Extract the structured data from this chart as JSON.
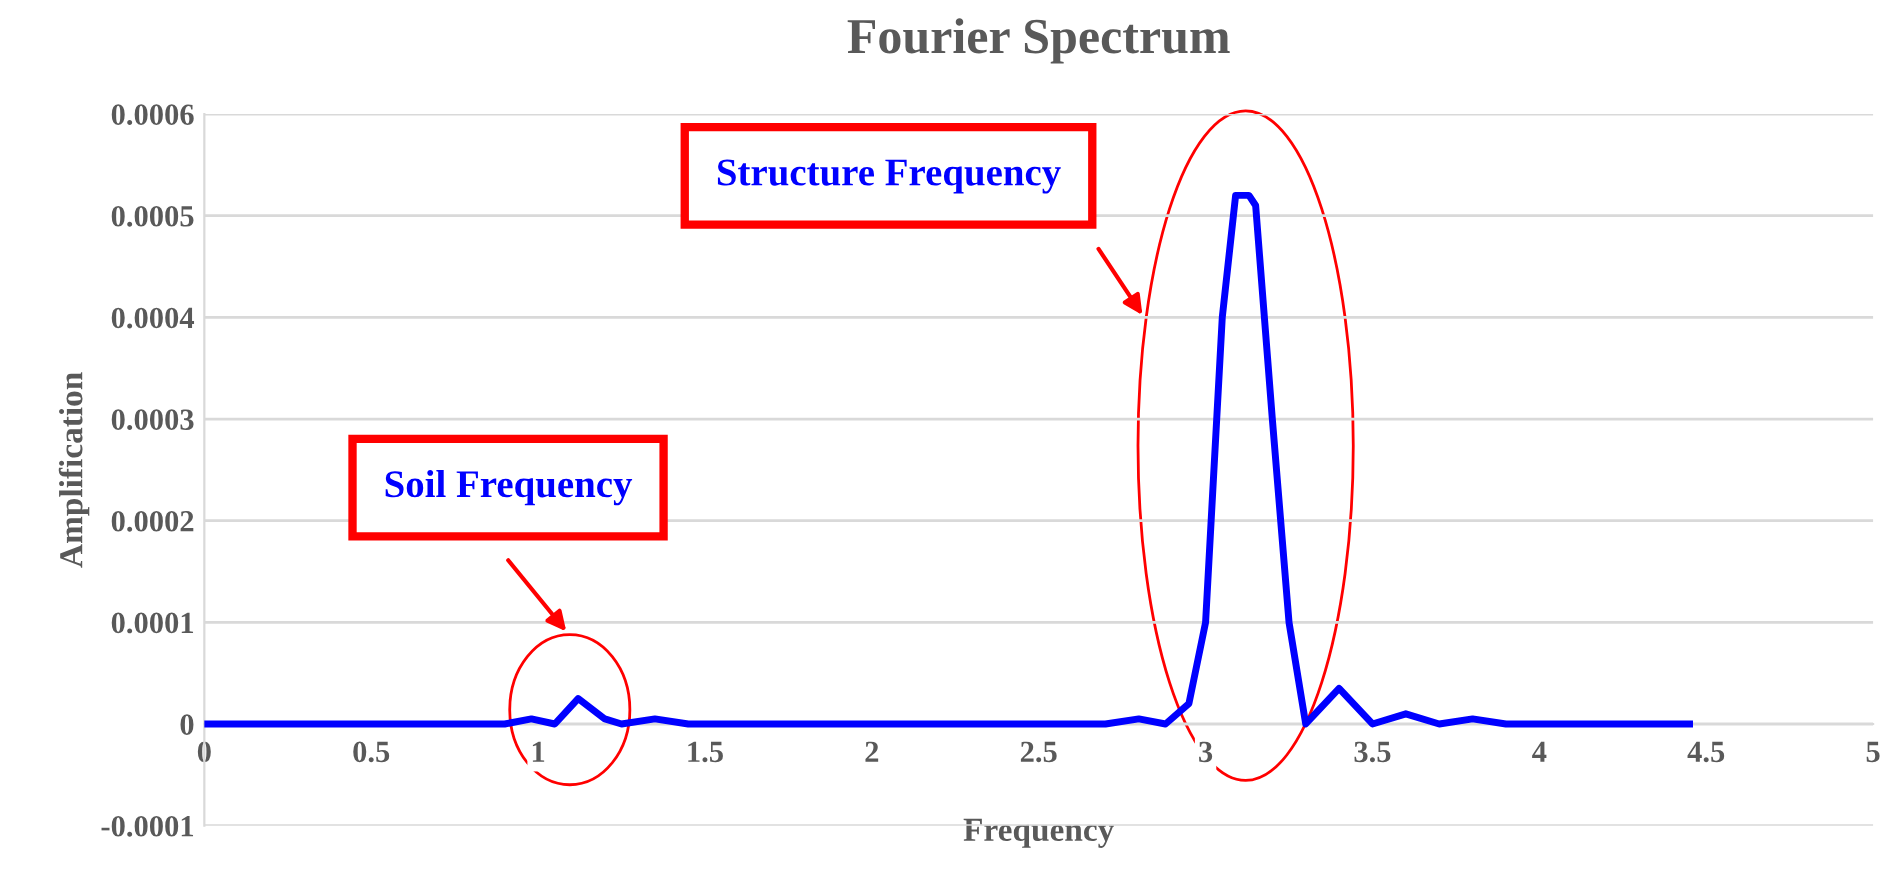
{
  "chart_data": {
    "type": "line",
    "title": "Fourier Spectrum",
    "xlabel": "Frequency",
    "ylabel": "Amplification",
    "x": [
      0,
      0.2,
      0.4,
      0.6,
      0.8,
      0.9,
      0.98,
      1.05,
      1.12,
      1.2,
      1.25,
      1.35,
      1.45,
      1.55,
      1.65,
      1.8,
      2.0,
      2.2,
      2.4,
      2.6,
      2.7,
      2.8,
      2.88,
      2.95,
      3.0,
      3.05,
      3.09,
      3.13,
      3.15,
      3.2,
      3.25,
      3.3,
      3.4,
      3.5,
      3.6,
      3.7,
      3.8,
      3.9,
      4.0,
      4.2,
      4.45
    ],
    "series": [
      {
        "color": "#0000ff",
        "values": [
          0,
          0,
          0,
          0,
          0,
          0,
          5e-06,
          0,
          2.5e-05,
          5e-06,
          0,
          5e-06,
          0,
          0,
          0,
          0,
          0,
          0,
          0,
          0,
          0,
          5e-06,
          0,
          2e-05,
          0.0001,
          0.0004,
          0.00052,
          0.00052,
          0.00051,
          0.0003,
          0.0001,
          0,
          3.5e-05,
          0,
          1e-05,
          0,
          5e-06,
          0,
          0,
          0,
          0
        ]
      }
    ],
    "annotations": [
      "Soil Frequency",
      "Structure Frequency"
    ],
    "xlim": [
      0,
      5
    ],
    "xticks": [
      0,
      0.5,
      1,
      1.5,
      2,
      2.5,
      3,
      3.5,
      4,
      4.5,
      5
    ],
    "ylim": [
      -0.0001,
      0.0006
    ],
    "yticks": [
      {
        "value": -0.0001,
        "label": "-0.0001"
      },
      {
        "value": 0,
        "label": "0"
      },
      {
        "value": 0.0001,
        "label": "0.0001"
      },
      {
        "value": 0.0002,
        "label": "0.0002"
      },
      {
        "value": 0.0003,
        "label": "0.0003"
      },
      {
        "value": 0.0004,
        "label": "0.0004"
      },
      {
        "value": 0.0005,
        "label": "0.0005"
      },
      {
        "value": 0.0006,
        "label": "0.0006"
      }
    ],
    "grid": "y",
    "legend": false,
    "marker": "none",
    "line_style": "solid"
  }
}
